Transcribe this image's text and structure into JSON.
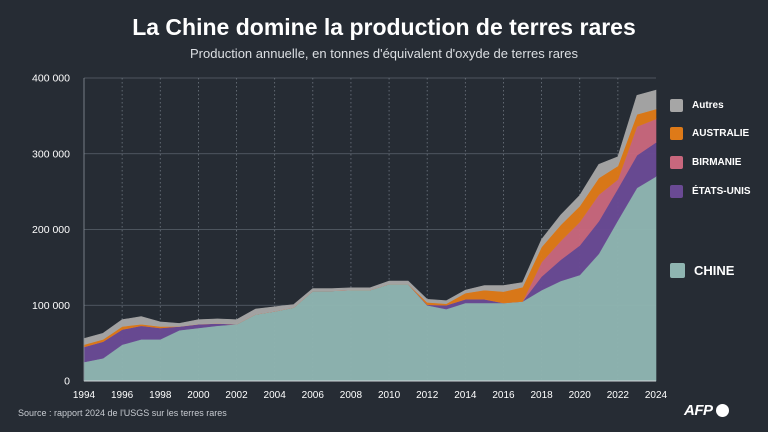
{
  "colors": {
    "background": "#262c34",
    "chine": "#8fb5b1",
    "etats_unis": "#6a4a94",
    "birmanie": "#c8677d",
    "australie": "#de7a18",
    "autres": "#a6a6a6"
  },
  "header": {
    "title": "La Chine domine la production de terres rares",
    "subtitle": "Production annuelle, en tonnes d'équivalent d'oxyde de terres rares"
  },
  "footer": {
    "source": "Source : rapport 2024 de l'USGS sur les terres rares",
    "logo_text": "AFP"
  },
  "chart_data": {
    "type": "area",
    "stacked": true,
    "title": "La Chine domine la production de terres rares",
    "subtitle": "Production annuelle, en tonnes d'équivalent d'oxyde de terres rares",
    "xlabel": "",
    "ylabel": "",
    "xlim": [
      1994,
      2024
    ],
    "ylim": [
      0,
      400000
    ],
    "x_ticks": [
      1994,
      1996,
      1998,
      2000,
      2002,
      2004,
      2006,
      2008,
      2010,
      2012,
      2014,
      2016,
      2018,
      2020,
      2022,
      2024
    ],
    "y_ticks": [
      0,
      100000,
      200000,
      300000,
      400000
    ],
    "y_tick_labels": [
      "0",
      "100 000",
      "200 000",
      "300 000",
      "400 000"
    ],
    "grid": true,
    "legend_position": "right",
    "x": [
      1994,
      1995,
      1996,
      1997,
      1998,
      1999,
      2000,
      2001,
      2002,
      2003,
      2004,
      2005,
      2006,
      2007,
      2008,
      2009,
      2010,
      2011,
      2012,
      2013,
      2014,
      2015,
      2016,
      2017,
      2018,
      2019,
      2020,
      2021,
      2022,
      2023,
      2024
    ],
    "series": [
      {
        "name": "CHINE",
        "color": "#8fb5b1",
        "values": [
          25000,
          30000,
          48000,
          55000,
          55000,
          67000,
          70000,
          73000,
          75000,
          88000,
          92000,
          97000,
          119000,
          119000,
          120000,
          120000,
          128000,
          128000,
          100000,
          95000,
          103000,
          103000,
          103000,
          105000,
          120000,
          132000,
          140000,
          168000,
          212000,
          255000,
          270000
        ]
      },
      {
        "name": "ÉTATS-UNIS",
        "color": "#6a4a94",
        "values": [
          20000,
          22000,
          20000,
          18000,
          15000,
          5000,
          5000,
          3000,
          0,
          0,
          0,
          0,
          0,
          0,
          0,
          0,
          0,
          0,
          800,
          5000,
          5000,
          5000,
          0,
          0,
          18000,
          28000,
          39000,
          43000,
          42000,
          43000,
          45000
        ]
      },
      {
        "name": "BIRMANIE",
        "color": "#c8677d",
        "values": [
          0,
          0,
          0,
          0,
          0,
          0,
          0,
          0,
          0,
          0,
          0,
          0,
          0,
          0,
          0,
          0,
          0,
          0,
          0,
          0,
          0,
          0,
          0,
          0,
          19000,
          25000,
          31000,
          35000,
          12000,
          38000,
          31000
        ]
      },
      {
        "name": "AUSTRALIE",
        "color": "#de7a18",
        "values": [
          3000,
          3000,
          4000,
          2000,
          2000,
          0,
          0,
          0,
          0,
          0,
          0,
          0,
          0,
          0,
          0,
          0,
          0,
          0,
          3000,
          2000,
          8000,
          12000,
          15000,
          19000,
          20000,
          21000,
          21000,
          22000,
          18000,
          16000,
          13000
        ]
      },
      {
        "name": "Autres",
        "color": "#a6a6a6",
        "values": [
          8000,
          8000,
          9000,
          10000,
          6000,
          4000,
          6000,
          6000,
          6000,
          7000,
          6000,
          4000,
          3000,
          3000,
          3000,
          3000,
          4000,
          4000,
          4000,
          4000,
          4000,
          6000,
          8000,
          6000,
          10000,
          13000,
          14000,
          18000,
          12000,
          25000,
          25000
        ]
      }
    ]
  },
  "legend": [
    {
      "label": "Autres",
      "color": "#a6a6a6"
    },
    {
      "label": "AUSTRALIE",
      "color": "#de7a18"
    },
    {
      "label": "BIRMANIE",
      "color": "#c8677d"
    },
    {
      "label": "ÉTATS-UNIS",
      "color": "#6a4a94"
    },
    {
      "label": "CHINE",
      "color": "#8fb5b1"
    }
  ]
}
